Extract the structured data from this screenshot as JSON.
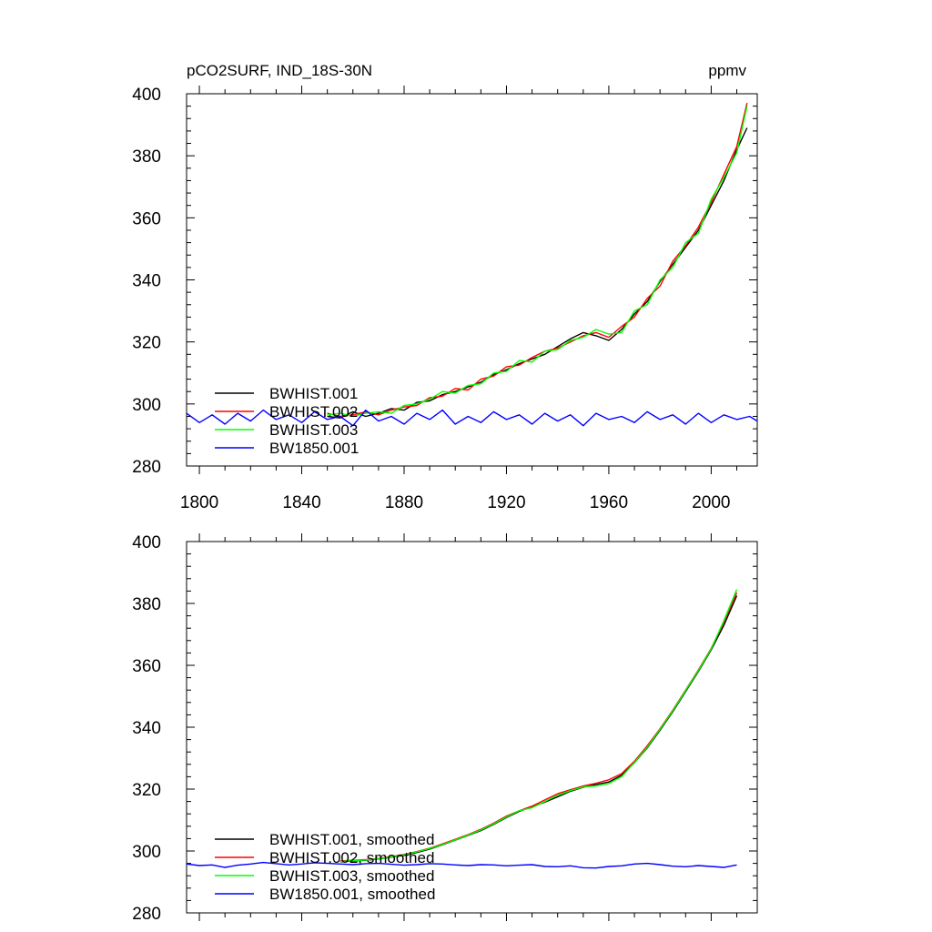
{
  "figure": {
    "title_left": "pCO2SURF, IND_18S-30N",
    "title_right": "ppmv"
  },
  "chart_data": [
    {
      "type": "line",
      "panel": "annual",
      "xlim": [
        1795,
        2018
      ],
      "ylim": [
        280,
        400
      ],
      "xticks": [
        1800,
        1840,
        1880,
        1920,
        1960,
        2000
      ],
      "yticks": [
        280,
        300,
        320,
        340,
        360,
        380,
        400
      ],
      "legend_position": "bottom-left",
      "grid": false,
      "series": [
        {
          "name": "BWHIST.001",
          "color": "#000000",
          "x": [
            1850,
            1855,
            1860,
            1865,
            1870,
            1875,
            1880,
            1885,
            1890,
            1895,
            1900,
            1905,
            1910,
            1915,
            1920,
            1925,
            1930,
            1935,
            1940,
            1945,
            1950,
            1955,
            1960,
            1965,
            1970,
            1975,
            1980,
            1985,
            1990,
            1995,
            2000,
            2005,
            2010,
            2014
          ],
          "y": [
            296.0,
            295.5,
            297.5,
            296.0,
            297.0,
            298.5,
            298.0,
            300.5,
            301.0,
            303.0,
            304.0,
            305.5,
            307.0,
            309.5,
            311.0,
            313.0,
            314.5,
            316.0,
            318.5,
            321.0,
            323.0,
            322.0,
            320.5,
            324.0,
            329.0,
            333.0,
            339.5,
            345.0,
            350.5,
            356.0,
            364.0,
            372.0,
            382.0,
            389.0
          ]
        },
        {
          "name": "BWHIST.002",
          "color": "#ff0000",
          "x": [
            1850,
            1855,
            1860,
            1865,
            1870,
            1875,
            1880,
            1885,
            1890,
            1895,
            1900,
            1905,
            1910,
            1915,
            1920,
            1925,
            1930,
            1935,
            1940,
            1945,
            1950,
            1955,
            1960,
            1965,
            1970,
            1975,
            1980,
            1985,
            1990,
            1995,
            2000,
            2005,
            2010,
            2014
          ],
          "y": [
            297.0,
            296.0,
            296.5,
            297.5,
            296.5,
            298.0,
            299.0,
            299.5,
            302.0,
            302.5,
            305.0,
            304.5,
            308.0,
            309.0,
            312.0,
            312.5,
            315.0,
            317.0,
            318.0,
            320.0,
            322.0,
            323.0,
            321.5,
            325.0,
            328.0,
            334.0,
            338.0,
            346.0,
            351.0,
            357.0,
            365.0,
            374.0,
            383.0,
            397.0
          ]
        },
        {
          "name": "BWHIST.003",
          "color": "#00ff00",
          "x": [
            1850,
            1855,
            1860,
            1865,
            1870,
            1875,
            1880,
            1885,
            1890,
            1895,
            1900,
            1905,
            1910,
            1915,
            1920,
            1925,
            1930,
            1935,
            1940,
            1945,
            1950,
            1955,
            1960,
            1965,
            1970,
            1975,
            1980,
            1985,
            1990,
            1995,
            2000,
            2005,
            2010,
            2014
          ],
          "y": [
            296.5,
            297.0,
            296.0,
            297.0,
            297.5,
            297.0,
            299.5,
            300.0,
            301.5,
            304.0,
            303.5,
            306.0,
            306.5,
            310.0,
            310.5,
            314.0,
            313.5,
            317.0,
            317.5,
            320.5,
            321.5,
            324.0,
            322.5,
            323.0,
            330.0,
            332.0,
            340.0,
            344.0,
            352.0,
            355.0,
            366.0,
            373.0,
            381.0,
            396.0
          ]
        },
        {
          "name": "BW1850.001",
          "color": "#0000ff",
          "x": [
            1795,
            1800,
            1805,
            1810,
            1815,
            1820,
            1825,
            1830,
            1835,
            1840,
            1845,
            1850,
            1855,
            1860,
            1865,
            1870,
            1875,
            1880,
            1885,
            1890,
            1895,
            1900,
            1905,
            1910,
            1915,
            1920,
            1925,
            1930,
            1935,
            1940,
            1945,
            1950,
            1955,
            1960,
            1965,
            1970,
            1975,
            1980,
            1985,
            1990,
            1995,
            2000,
            2005,
            2010,
            2015,
            2018
          ],
          "y": [
            297.0,
            294.0,
            296.5,
            293.5,
            297.0,
            294.5,
            298.0,
            295.0,
            296.5,
            294.0,
            297.5,
            295.0,
            296.0,
            293.0,
            298.0,
            294.5,
            296.0,
            293.5,
            297.0,
            295.0,
            298.0,
            293.5,
            296.0,
            294.0,
            297.5,
            295.0,
            296.5,
            293.5,
            297.0,
            294.5,
            296.5,
            293.0,
            297.0,
            295.0,
            296.0,
            294.0,
            297.5,
            295.0,
            296.5,
            293.5,
            297.0,
            294.0,
            296.5,
            295.0,
            296.0,
            294.5
          ]
        }
      ]
    },
    {
      "type": "line",
      "panel": "smoothed",
      "xlim": [
        1795,
        2018
      ],
      "ylim": [
        280,
        400
      ],
      "xticks": [
        1800,
        1840,
        1880,
        1920,
        1960,
        2000
      ],
      "yticks": [
        280,
        300,
        320,
        340,
        360,
        380,
        400
      ],
      "legend_position": "bottom-left",
      "grid": false,
      "series": [
        {
          "name": "BWHIST.001, smoothed",
          "color": "#000000",
          "x": [
            1855,
            1860,
            1865,
            1870,
            1875,
            1880,
            1885,
            1890,
            1895,
            1900,
            1905,
            1910,
            1915,
            1920,
            1925,
            1930,
            1935,
            1940,
            1945,
            1950,
            1955,
            1960,
            1965,
            1970,
            1975,
            1980,
            1985,
            1990,
            1995,
            2000,
            2005,
            2010
          ],
          "y": [
            296.5,
            296.8,
            297.0,
            297.4,
            298.0,
            298.6,
            299.5,
            300.6,
            302.0,
            303.5,
            305.0,
            306.6,
            308.6,
            310.8,
            312.8,
            314.3,
            315.8,
            317.5,
            319.3,
            320.6,
            321.5,
            322.3,
            324.5,
            328.5,
            333.3,
            339.0,
            345.0,
            351.5,
            358.0,
            365.0,
            373.0,
            382.5
          ]
        },
        {
          "name": "BWHIST.002, smoothed",
          "color": "#ff0000",
          "x": [
            1855,
            1860,
            1865,
            1870,
            1875,
            1880,
            1885,
            1890,
            1895,
            1900,
            1905,
            1910,
            1915,
            1920,
            1925,
            1930,
            1935,
            1940,
            1945,
            1950,
            1955,
            1960,
            1965,
            1970,
            1975,
            1980,
            1985,
            1990,
            1995,
            2000,
            2005,
            2010
          ],
          "y": [
            296.8,
            297.0,
            297.2,
            297.6,
            298.2,
            298.9,
            299.8,
            300.9,
            302.3,
            303.8,
            305.3,
            307.0,
            309.0,
            311.3,
            313.0,
            314.5,
            316.5,
            318.5,
            319.8,
            321.0,
            321.9,
            323.0,
            325.0,
            329.0,
            334.0,
            339.5,
            345.5,
            352.0,
            358.5,
            365.5,
            374.0,
            383.5
          ]
        },
        {
          "name": "BWHIST.003, smoothed",
          "color": "#00ff00",
          "x": [
            1855,
            1860,
            1865,
            1870,
            1875,
            1880,
            1885,
            1890,
            1895,
            1900,
            1905,
            1910,
            1915,
            1920,
            1925,
            1930,
            1935,
            1940,
            1945,
            1950,
            1955,
            1960,
            1965,
            1970,
            1975,
            1980,
            1985,
            1990,
            1995,
            2000,
            2005,
            2010
          ],
          "y": [
            296.6,
            296.9,
            297.1,
            297.5,
            298.1,
            298.8,
            299.7,
            300.8,
            302.1,
            303.6,
            305.1,
            306.8,
            308.8,
            311.0,
            313.0,
            314.0,
            316.0,
            318.0,
            319.5,
            320.7,
            321.0,
            321.8,
            324.0,
            328.6,
            333.5,
            339.3,
            345.3,
            351.8,
            358.3,
            365.3,
            374.5,
            384.5
          ]
        },
        {
          "name": "BW1850.001, smoothed",
          "color": "#0000ff",
          "x": [
            1795,
            1800,
            1805,
            1810,
            1815,
            1820,
            1825,
            1830,
            1835,
            1840,
            1845,
            1850,
            1855,
            1860,
            1865,
            1870,
            1875,
            1880,
            1885,
            1890,
            1895,
            1900,
            1905,
            1910,
            1915,
            1920,
            1925,
            1930,
            1935,
            1940,
            1945,
            1950,
            1955,
            1960,
            1965,
            1970,
            1975,
            1980,
            1985,
            1990,
            1995,
            2000,
            2005,
            2010
          ],
          "y": [
            295.8,
            295.3,
            295.5,
            294.7,
            295.4,
            295.8,
            296.3,
            295.9,
            295.5,
            295.8,
            296.2,
            296.0,
            295.8,
            295.6,
            295.9,
            296.0,
            295.7,
            295.4,
            295.6,
            295.9,
            295.8,
            295.5,
            295.3,
            295.6,
            295.5,
            295.2,
            295.4,
            295.6,
            295.0,
            294.9,
            295.2,
            294.6,
            294.5,
            295.0,
            295.2,
            295.8,
            296.0,
            295.6,
            295.1,
            294.9,
            295.3,
            295.0,
            294.7,
            295.5
          ]
        }
      ]
    }
  ]
}
